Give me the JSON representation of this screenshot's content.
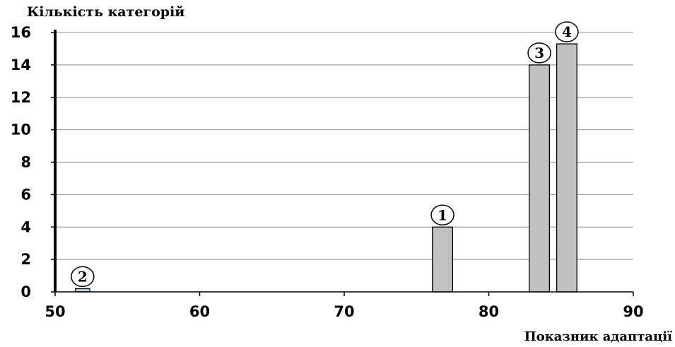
{
  "chart_data": {
    "type": "bar",
    "title": "",
    "xlabel": "Показник адаптації",
    "ylabel": "Кількість категорій",
    "xlim": [
      50,
      90
    ],
    "ylim": [
      0,
      16
    ],
    "x_ticks": [
      50,
      60,
      70,
      80,
      90
    ],
    "y_ticks": [
      0,
      2,
      4,
      6,
      8,
      10,
      12,
      14,
      16
    ],
    "grid": true,
    "bars": [
      {
        "label": "2",
        "x_start": 51.4,
        "x_end": 52.4,
        "value": 0.2,
        "color": "#b8cce4"
      },
      {
        "label": "1",
        "x_start": 76.1,
        "x_end": 77.5,
        "value": 4,
        "color": "#c0c0c0"
      },
      {
        "label": "3",
        "x_start": 82.8,
        "x_end": 84.2,
        "value": 14,
        "color": "#c0c0c0"
      },
      {
        "label": "4",
        "x_start": 84.7,
        "x_end": 86.1,
        "value": 15.3,
        "color": "#c0c0c0"
      }
    ]
  }
}
